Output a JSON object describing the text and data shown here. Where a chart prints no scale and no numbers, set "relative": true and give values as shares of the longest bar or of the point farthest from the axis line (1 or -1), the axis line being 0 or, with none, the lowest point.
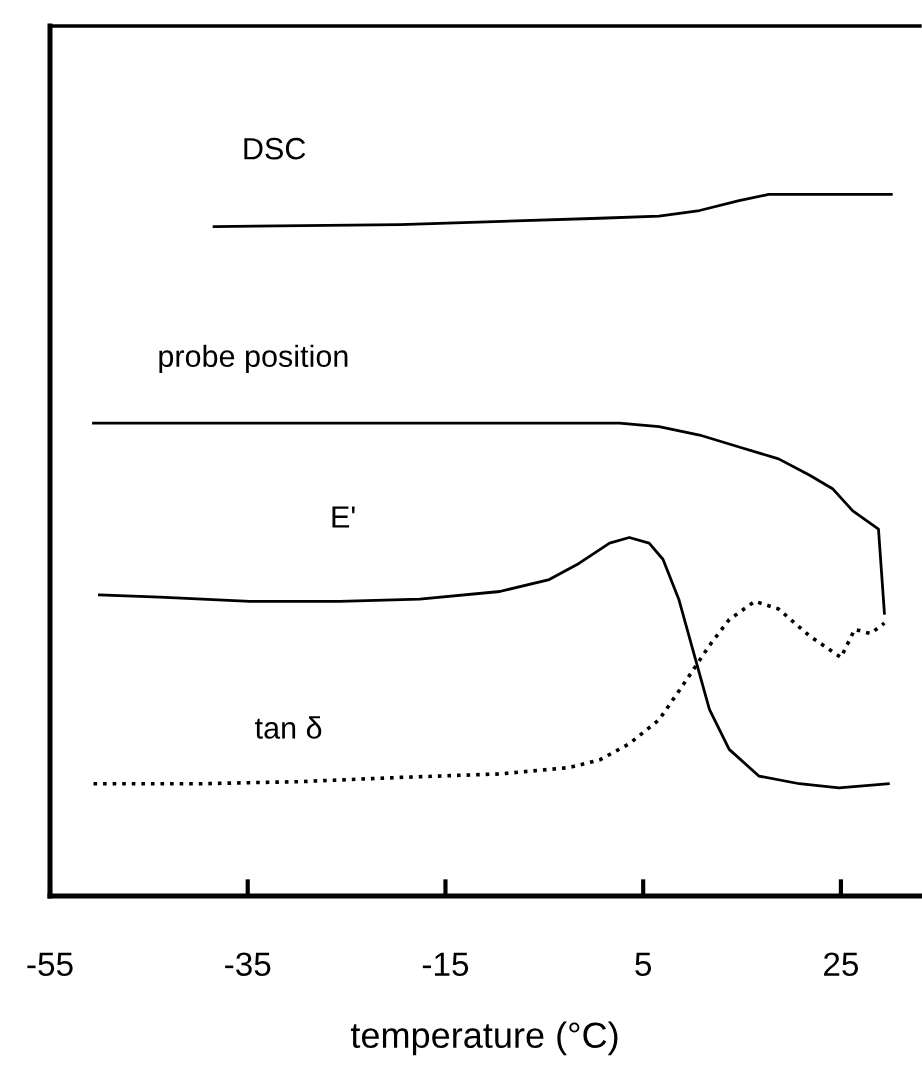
{
  "chart_data": {
    "type": "line",
    "xlabel": "temperature (°C)",
    "relative": true,
    "xlim": [
      -55,
      33
    ],
    "xticks": [
      -55,
      -35,
      -15,
      5,
      25
    ],
    "tick_labels": "x",
    "grid": false,
    "legend": false,
    "marker": "none",
    "series": [
      {
        "name": "DSC",
        "color": "#000000",
        "line_style": "solid",
        "x": [
          -38.4,
          -19.6,
          0.6,
          6.6,
          10.7,
          14.7,
          17.7,
          20.8,
          30.1
        ],
        "values": [
          0.954,
          0.957,
          0.966,
          0.969,
          0.977,
          0.991,
          1,
          1,
          1
        ]
      },
      {
        "name": "probe position",
        "color": "#000000",
        "line_style": "solid",
        "x": [
          -50.6,
          2.6,
          6.6,
          10.7,
          14.7,
          18.7,
          21.8,
          24.2,
          26.2,
          28.8,
          29.4
        ],
        "values": [
          0.674,
          0.674,
          0.669,
          0.657,
          0.64,
          0.623,
          0.6,
          0.58,
          0.549,
          0.523,
          0.403
        ]
      },
      {
        "name": "E'",
        "color": "#000000",
        "line_style": "solid",
        "x": [
          -50.0,
          -43.9,
          -34.8,
          -25.7,
          -17.6,
          -9.5,
          -4.5,
          -1.5,
          1.6,
          3.6,
          5.6,
          7.0,
          8.6,
          10.3,
          11.7,
          13.7,
          16.7,
          20.8,
          24.8,
          29.8
        ],
        "values": [
          0.429,
          0.426,
          0.42,
          0.42,
          0.423,
          0.434,
          0.451,
          0.474,
          0.503,
          0.511,
          0.503,
          0.48,
          0.423,
          0.337,
          0.266,
          0.209,
          0.171,
          0.16,
          0.154,
          0.16
        ]
      },
      {
        "name": "tan δ",
        "color": "#000000",
        "line_style": "dotted",
        "x": [
          -50.6,
          -39.8,
          -29.7,
          -19.6,
          -9.5,
          -2.5,
          0.6,
          3.6,
          6.6,
          9.0,
          11.7,
          13.7,
          16.3,
          18.7,
          21.8,
          25.0,
          26.4,
          28.0,
          29.4
        ],
        "values": [
          0.16,
          0.16,
          0.163,
          0.169,
          0.174,
          0.183,
          0.194,
          0.217,
          0.251,
          0.3,
          0.357,
          0.394,
          0.42,
          0.409,
          0.371,
          0.34,
          0.38,
          0.374,
          0.389
        ]
      }
    ]
  }
}
